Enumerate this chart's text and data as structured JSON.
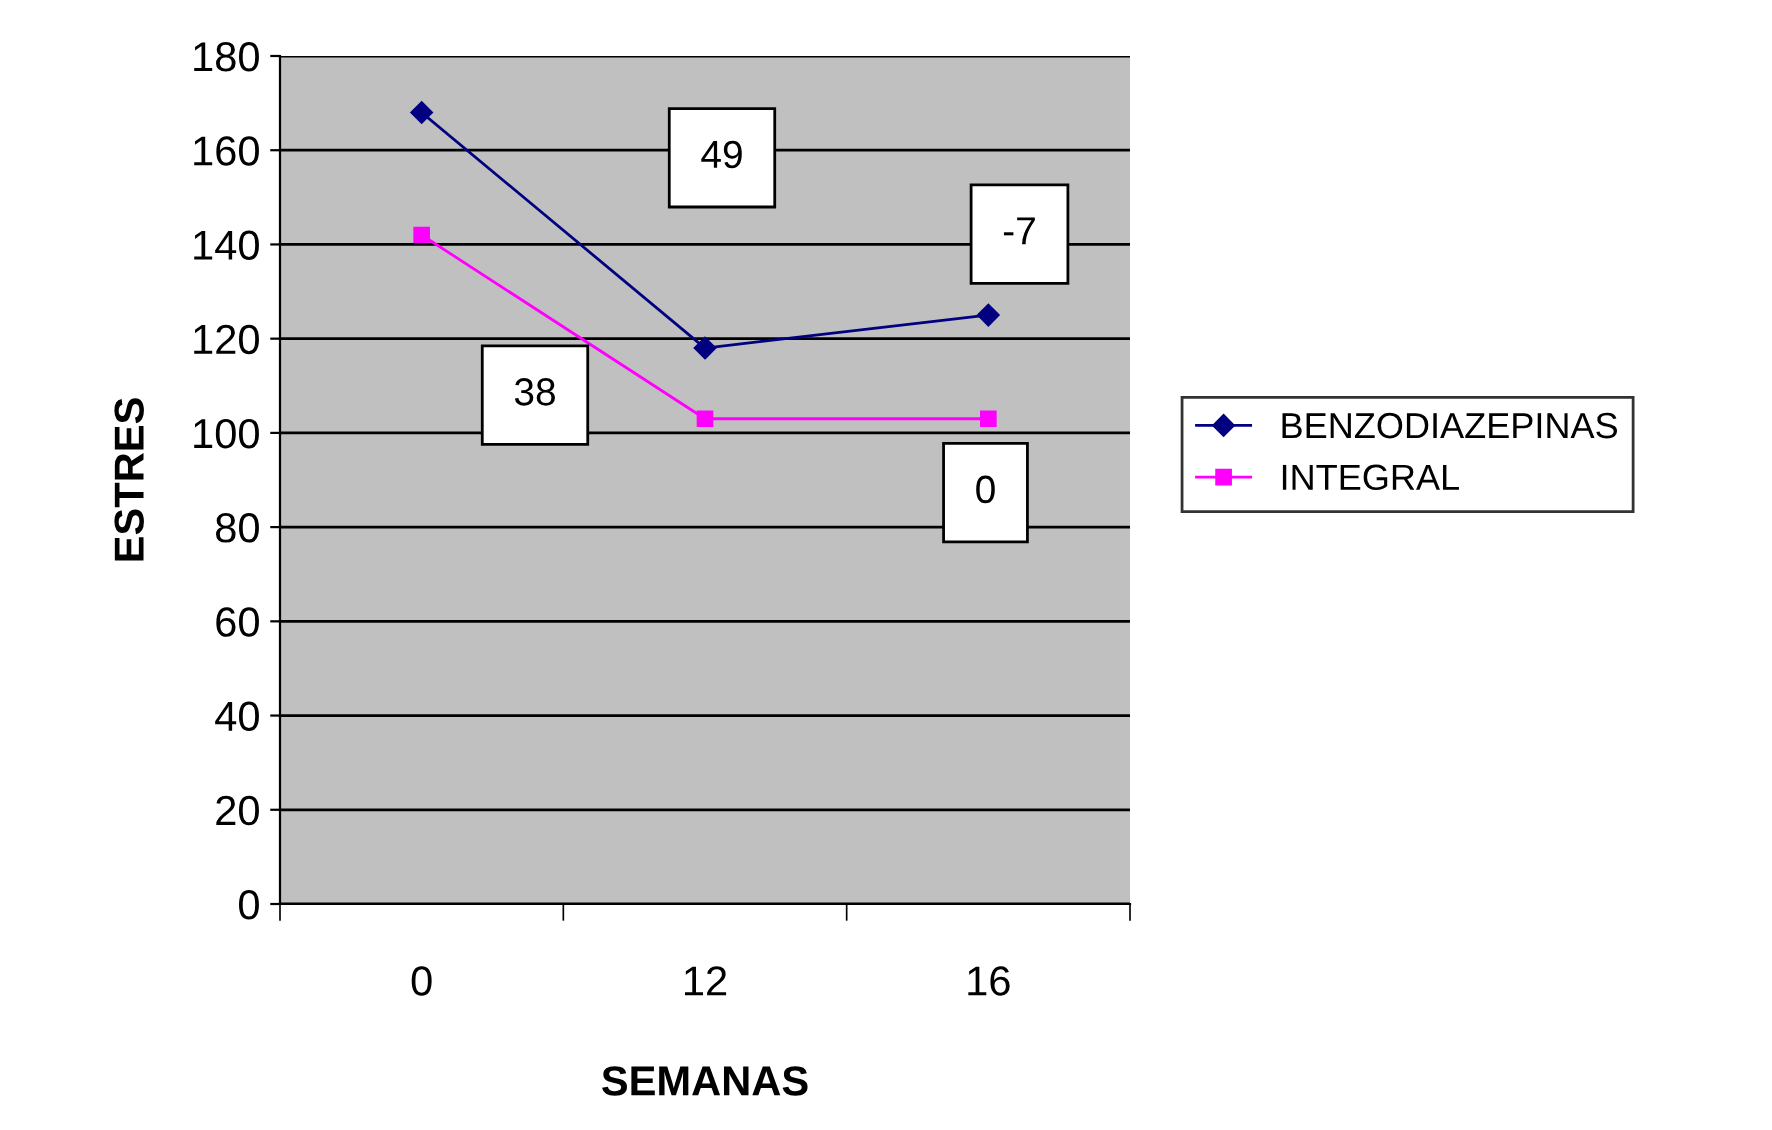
{
  "chart_data": {
    "type": "line",
    "xlabel": "SEMANAS",
    "ylabel": "ESTRES",
    "categories": [
      "0",
      "12",
      "16"
    ],
    "series": [
      {
        "name": "BENZODIAZEPINAS",
        "color": "#000080",
        "values": [
          168,
          118,
          125
        ],
        "marker": "diamond"
      },
      {
        "name": "INTEGRAL",
        "color": "#ff00ff",
        "values": [
          142,
          103,
          103
        ],
        "marker": "square"
      }
    ],
    "ylim": [
      0,
      180
    ],
    "yticks": [
      0,
      20,
      40,
      60,
      80,
      100,
      120,
      140,
      160,
      180
    ],
    "grid": "y",
    "legend": "right",
    "annotations": [
      "49",
      "-7",
      "38",
      "0"
    ]
  }
}
